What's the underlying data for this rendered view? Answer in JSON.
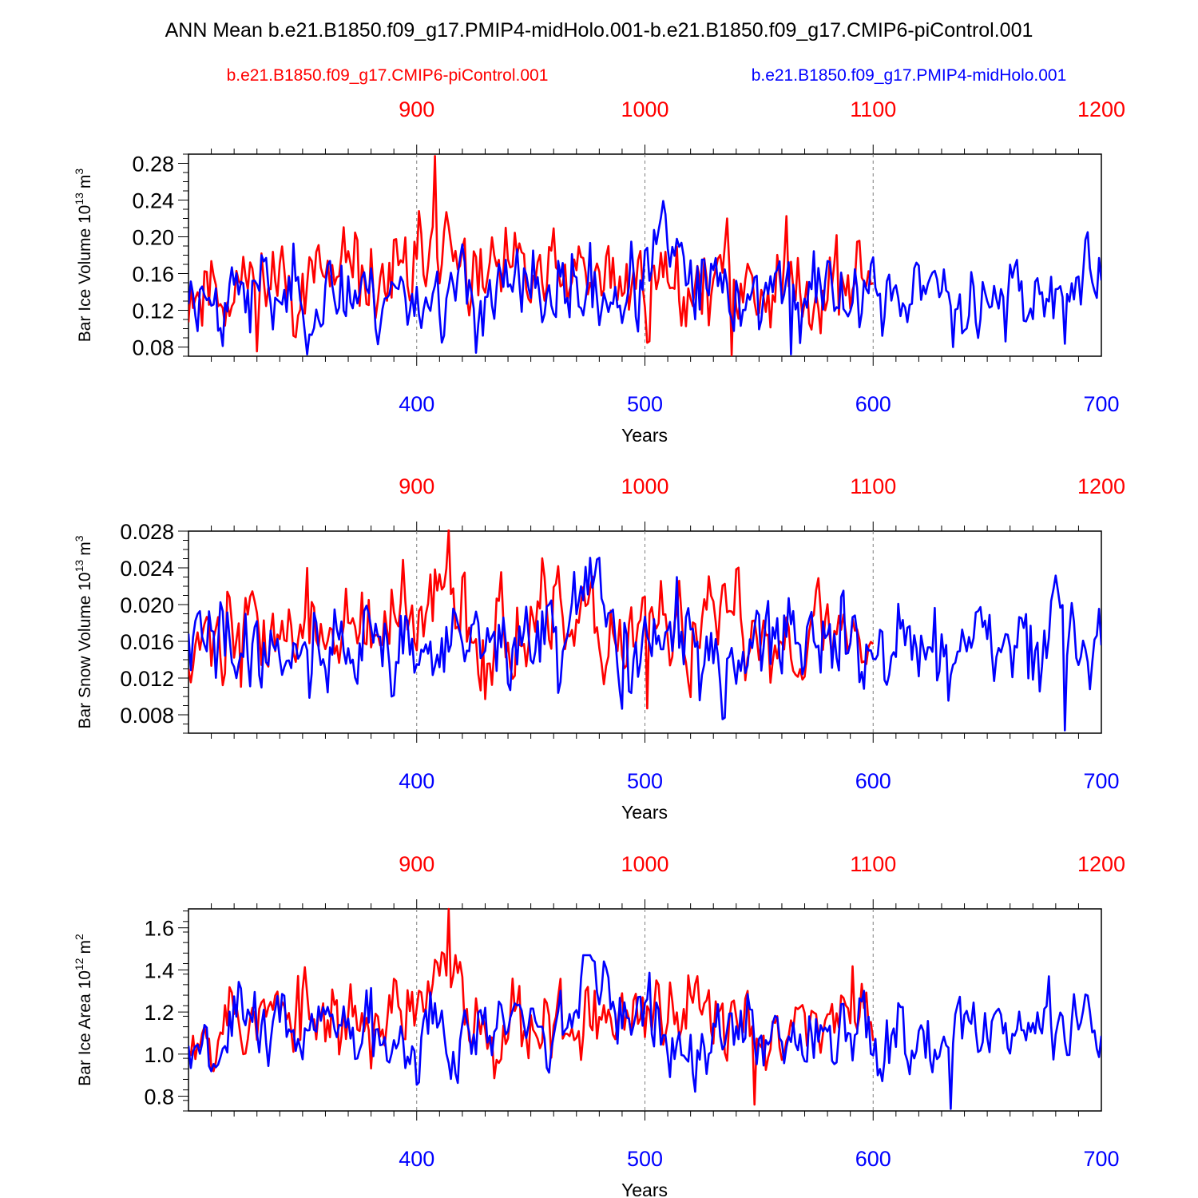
{
  "title": "ANN Mean b.e21.B1850.f09_g17.PMIP4-midHolo.001-b.e21.B1850.f09_g17.CMIP6-piControl.001",
  "legend": {
    "control_label": "b.e21.B1850.f09_g17.CMIP6-piControl.001",
    "test_label": "b.e21.B1850.f09_g17.PMIP4-midHolo.001"
  },
  "colors": {
    "control": "#ff0000",
    "test": "#0000ff",
    "axis": "#000000",
    "grid": "#7f7f7f"
  },
  "chart_data": [
    {
      "type": "line",
      "ylabel": "Bar Ice Volume 10",
      "ylabel_exp": "13",
      "ylabel_unit": "m",
      "ylabel_unit_exp": "3",
      "xlabel": "Years",
      "xlim_bottom": [
        300,
        700
      ],
      "xlim_top": [
        800,
        1200
      ],
      "xticks_bottom": [
        "400",
        "500",
        "600",
        "700"
      ],
      "xticks_top": [
        "900",
        "1000",
        "1100",
        "1200"
      ],
      "ylim": [
        0.07,
        0.29
      ],
      "yticks": [
        "0.08",
        "0.12",
        "0.16",
        "0.20",
        "0.24",
        "0.28"
      ],
      "control_years": [
        800,
        1100
      ],
      "test_years": [
        300,
        700
      ],
      "series": [
        {
          "name": "b.e21.B1850.f09_g17.CMIP6-piControl.001",
          "base": 0.15,
          "amp": 0.03,
          "min": 0.071,
          "max": 0.288,
          "peak_pos": 0.36,
          "seed": 11
        },
        {
          "name": "b.e21.B1850.f09_g17.PMIP4-midHolo.001",
          "base": 0.138,
          "amp": 0.027,
          "min": 0.072,
          "max": 0.239,
          "peak_pos": 0.52,
          "seed": 23
        }
      ]
    },
    {
      "type": "line",
      "ylabel": "Bar Snow Volume 10",
      "ylabel_exp": "13",
      "ylabel_unit": "m",
      "ylabel_unit_exp": "3",
      "xlabel": "Years",
      "xlim_bottom": [
        300,
        700
      ],
      "xlim_top": [
        800,
        1200
      ],
      "xticks_bottom": [
        "400",
        "500",
        "600",
        "700"
      ],
      "xticks_top": [
        "900",
        "1000",
        "1100",
        "1200"
      ],
      "ylim": [
        0.006,
        0.028
      ],
      "yticks": [
        "0.008",
        "0.012",
        "0.016",
        "0.020",
        "0.024",
        "0.028"
      ],
      "control_years": [
        800,
        1100
      ],
      "test_years": [
        300,
        700
      ],
      "series": [
        {
          "name": "b.e21.B1850.f09_g17.CMIP6-piControl.001",
          "base": 0.017,
          "amp": 0.0032,
          "min": 0.0087,
          "max": 0.0281,
          "peak_pos": 0.38,
          "seed": 37
        },
        {
          "name": "b.e21.B1850.f09_g17.PMIP4-midHolo.001",
          "base": 0.0155,
          "amp": 0.003,
          "min": 0.0063,
          "max": 0.0251,
          "peak_pos": 0.44,
          "seed": 41
        }
      ]
    },
    {
      "type": "line",
      "ylabel": "Bar Ice Area 10",
      "ylabel_exp": "12",
      "ylabel_unit": "m",
      "ylabel_unit_exp": "2",
      "xlabel": "Years",
      "xlim_bottom": [
        300,
        700
      ],
      "xlim_top": [
        800,
        1200
      ],
      "xticks_bottom": [
        "400",
        "500",
        "600",
        "700"
      ],
      "xticks_top": [
        "900",
        "1000",
        "1100",
        "1200"
      ],
      "ylim": [
        0.73,
        1.69
      ],
      "yticks": [
        "0.8",
        "1.0",
        "1.2",
        "1.4",
        "1.6"
      ],
      "control_years": [
        800,
        1100
      ],
      "test_years": [
        300,
        700
      ],
      "series": [
        {
          "name": "b.e21.B1850.f09_g17.CMIP6-piControl.001",
          "base": 1.17,
          "amp": 0.12,
          "min": 0.76,
          "max": 1.69,
          "peak_pos": 0.38,
          "seed": 53
        },
        {
          "name": "b.e21.B1850.f09_g17.PMIP4-midHolo.001",
          "base": 1.12,
          "amp": 0.11,
          "min": 0.74,
          "max": 1.47,
          "peak_pos": 0.44,
          "seed": 67
        }
      ]
    }
  ]
}
